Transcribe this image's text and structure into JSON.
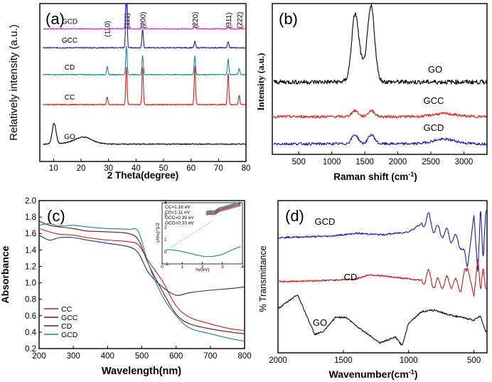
{
  "figure": "XRD / Raman / UV-Vis / FTIR characterization",
  "colors": {
    "GCD": "#d61fd6",
    "GCC": "#1f1fa8",
    "CD": "#138f8f",
    "CC": "#d91e1e",
    "GO": "#000000",
    "GCC_b": "#e12020",
    "GCD_b": "#1a1ab0",
    "CC_c": "#c42020",
    "GCC_c": "#7a0f0f",
    "CD_c": "#2a2a8a",
    "GCD_c": "#0f8f86",
    "GCD_d": "#1d1db0",
    "CD_d": "#cc1a1a",
    "GO_d": "#111111"
  },
  "chart_data": [
    {
      "panel": "(a)",
      "type": "line",
      "title": "",
      "xlabel": "2 Theta(degree)",
      "ylabel": "Relatively intensity (a.u.)",
      "xlim": [
        5,
        80
      ],
      "xticks": [
        "10",
        "20",
        "30",
        "40",
        "50",
        "60",
        "70",
        "80"
      ],
      "grid": false,
      "peak_labels": [
        "(110)",
        "(111)",
        "(200)",
        "(220)",
        "(311)",
        "(222)"
      ],
      "peak_positions": [
        29.5,
        36.5,
        42.4,
        61.4,
        73.5,
        77.5
      ],
      "series": [
        {
          "name": "GCD",
          "baseline": 0.84,
          "peaks": [
            [
              36.5,
              0.35
            ],
            [
              42.4,
              0.04
            ],
            [
              61.4,
              0.03
            ],
            [
              73.5,
              0.02
            ]
          ]
        },
        {
          "name": "GCC",
          "baseline": 0.72,
          "peaks": [
            [
              36.5,
              0.45
            ],
            [
              42.4,
              0.12
            ],
            [
              61.4,
              0.04
            ],
            [
              73.5,
              0.04
            ]
          ]
        },
        {
          "name": "CD",
          "baseline": 0.55,
          "peaks": [
            [
              29.5,
              0.05
            ],
            [
              36.5,
              0.18
            ],
            [
              42.4,
              0.12
            ],
            [
              61.4,
              0.12
            ],
            [
              73.5,
              0.1
            ],
            [
              77.5,
              0.04
            ]
          ]
        },
        {
          "name": "CC",
          "baseline": 0.36,
          "peaks": [
            [
              29.5,
              0.05
            ],
            [
              36.5,
              0.24
            ],
            [
              42.4,
              0.24
            ],
            [
              61.4,
              0.24
            ],
            [
              73.5,
              0.2
            ],
            [
              77.5,
              0.06
            ]
          ]
        },
        {
          "name": "GO",
          "baseline": 0.11,
          "peaks": [
            [
              10.2,
              0.13
            ],
            [
              21.0,
              0.03
            ]
          ]
        }
      ]
    },
    {
      "panel": "(b)",
      "type": "line",
      "xlabel": "Raman shift (cm",
      "xlabel_sup": "-1",
      "xlabel_end": ")",
      "ylabel": "Intensity (a.u.)",
      "xlim": [
        100,
        3350
      ],
      "xticks": [
        "500",
        "1000",
        "1500",
        "2000",
        "2500",
        "3000"
      ],
      "grid": false,
      "series": [
        {
          "name": "GO",
          "baseline": 0.48,
          "peaks": [
            [
              1350,
              0.38
            ],
            [
              1600,
              0.42
            ]
          ]
        },
        {
          "name": "GCC",
          "baseline": 0.25,
          "peaks": [
            [
              1350,
              0.04
            ],
            [
              1600,
              0.04
            ],
            [
              2700,
              0.02
            ]
          ]
        },
        {
          "name": "GCD",
          "baseline": 0.07,
          "peaks": [
            [
              1350,
              0.06
            ],
            [
              1600,
              0.06
            ],
            [
              2700,
              0.03
            ]
          ]
        }
      ]
    },
    {
      "panel": "(c)",
      "type": "line",
      "xlabel": "Wavelength(nm)",
      "ylabel": "Absorbance",
      "xlim": [
        200,
        800
      ],
      "ylim": [
        0.2,
        2.0
      ],
      "xticks": [
        "200",
        "300",
        "400",
        "500",
        "600",
        "700",
        "800"
      ],
      "yticks": [
        "0.2",
        "0.4",
        "0.6",
        "0.8",
        "1.0",
        "1.2",
        "1.4",
        "1.6",
        "1.8",
        "2.0"
      ],
      "legend": [
        "CC",
        "GCC",
        "CD",
        "GCD"
      ],
      "legend_position": "bottom-left",
      "inset": {
        "lines": [
          "CC=1.16 eV",
          "CD=1.11 eV",
          "GCC=0.39 eV",
          "GCD=0.33 eV"
        ],
        "xlabel": "hv(eV)",
        "ylabel": "(Ahv)^1/2",
        "xticks": [
          "0",
          "1",
          "2",
          "3",
          "4"
        ],
        "yticks": [
          "-1",
          "0",
          "1",
          "2",
          "3",
          "4"
        ]
      },
      "series": [
        {
          "name": "CC",
          "x": [
            200,
            230,
            260,
            300,
            340,
            400,
            460,
            490,
            520,
            560,
            600,
            640,
            700,
            760,
            800
          ],
          "y": [
            1.66,
            1.62,
            1.59,
            1.58,
            1.55,
            1.52,
            1.5,
            1.46,
            1.26,
            1.02,
            0.72,
            0.58,
            0.5,
            0.44,
            0.42
          ]
        },
        {
          "name": "GCC",
          "x": [
            200,
            230,
            260,
            300,
            340,
            400,
            460,
            490,
            520,
            560,
            600,
            640,
            700,
            760,
            800
          ],
          "y": [
            1.75,
            1.7,
            1.68,
            1.66,
            1.63,
            1.62,
            1.6,
            1.52,
            1.22,
            0.9,
            0.62,
            0.5,
            0.44,
            0.4,
            0.38
          ]
        },
        {
          "name": "CD",
          "x": [
            200,
            230,
            260,
            300,
            340,
            400,
            460,
            490,
            520,
            560,
            600,
            640,
            700,
            760,
            800
          ],
          "y": [
            1.58,
            1.52,
            1.55,
            1.55,
            1.52,
            1.48,
            1.44,
            1.36,
            1.12,
            0.95,
            0.85,
            0.88,
            0.91,
            0.93,
            0.95
          ]
        },
        {
          "name": "GCD",
          "x": [
            200,
            230,
            260,
            300,
            340,
            400,
            460,
            490,
            520,
            560,
            600,
            640,
            700,
            760,
            800
          ],
          "y": [
            1.7,
            1.72,
            1.69,
            1.7,
            1.68,
            1.66,
            1.65,
            1.62,
            1.22,
            0.84,
            0.6,
            0.45,
            0.38,
            0.32,
            0.29
          ]
        }
      ]
    },
    {
      "panel": "(d)",
      "type": "line",
      "xlabel": "Wavenumber(cm",
      "xlabel_sup": "-1",
      "xlabel_end": ")",
      "ylabel": "% Transmittance",
      "xlim": [
        2000,
        400
      ],
      "xticks": [
        "2000",
        "1500",
        "1000",
        "500"
      ],
      "grid": false,
      "series": [
        {
          "name": "GCD",
          "x": [
            2000,
            1600,
            1400,
            1200,
            1000,
            900,
            850,
            800,
            700,
            600,
            550,
            500,
            470,
            450,
            430,
            410
          ],
          "y": [
            0.76,
            0.77,
            0.79,
            0.78,
            0.8,
            0.86,
            0.9,
            0.82,
            0.78,
            0.72,
            0.55,
            0.92,
            0.5,
            0.98,
            0.6,
            0.95
          ]
        },
        {
          "name": "CD",
          "x": [
            2000,
            1600,
            1400,
            1300,
            1200,
            1000,
            900,
            850,
            800,
            700,
            600,
            550,
            500,
            470,
            450,
            430,
            410
          ],
          "y": [
            0.45,
            0.46,
            0.47,
            0.5,
            0.49,
            0.47,
            0.46,
            0.5,
            0.43,
            0.45,
            0.42,
            0.55,
            0.35,
            0.62,
            0.38,
            0.55,
            0.4
          ]
        },
        {
          "name": "GO",
          "x": [
            2000,
            1850,
            1720,
            1650,
            1560,
            1480,
            1400,
            1220,
            1100,
            1050,
            1000,
            900,
            800,
            700,
            600,
            500,
            450,
            410
          ],
          "y": [
            0.26,
            0.36,
            0.08,
            0.1,
            0.2,
            0.2,
            0.14,
            0.02,
            0.06,
            0.0,
            0.16,
            0.24,
            0.25,
            0.22,
            0.2,
            0.18,
            0.21,
            0.1
          ]
        }
      ]
    }
  ]
}
